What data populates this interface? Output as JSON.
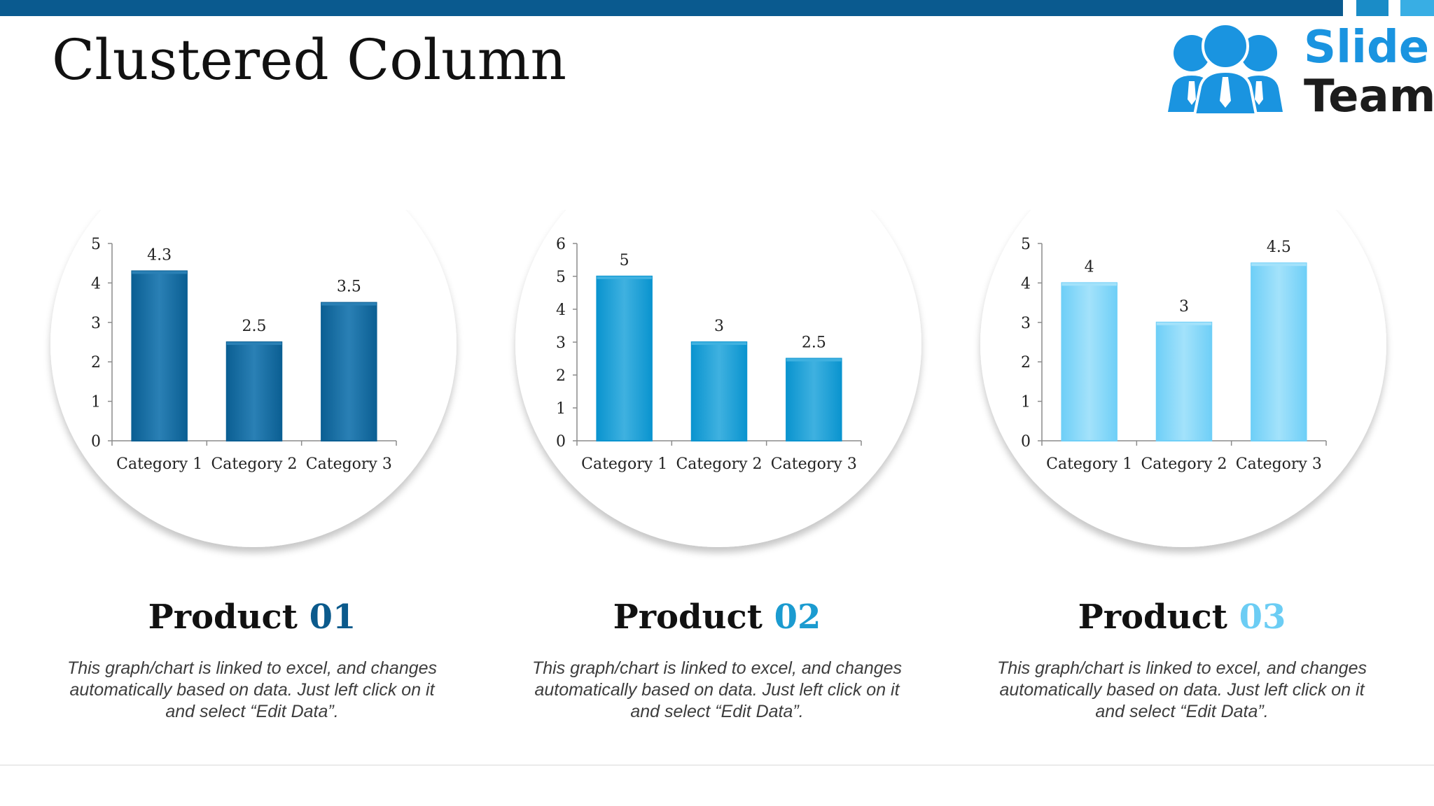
{
  "slide": {
    "title": "Clustered Column"
  },
  "logo": {
    "line1": "Slide",
    "line2": "Team"
  },
  "theme": {
    "top_bar": "#0a5a8f",
    "accent_1": "#1a8cc7",
    "accent_2": "#38aee4"
  },
  "products": [
    {
      "title_word": "Product",
      "title_number": "01",
      "number_color": "#0b5a8c",
      "bar_color": "#0b5f93",
      "bar_color_light": "#2a80b5",
      "description": "This graph/chart is linked to excel, and changes automatically based on data. Just left click on it and select “Edit Data”."
    },
    {
      "title_word": "Product",
      "title_number": "02",
      "number_color": "#1b9bd0",
      "bar_color": "#0a94cf",
      "bar_color_light": "#3fb1e0",
      "description": "This graph/chart is linked to excel, and changes automatically based on data. Just left click on it and select “Edit Data”."
    },
    {
      "title_word": "Product",
      "title_number": "03",
      "number_color": "#6ccdf4",
      "bar_color": "#6fcff7",
      "bar_color_light": "#a3e2fb",
      "description": "This graph/chart is linked to excel, and changes automatically based on data. Just left click on it and select “Edit Data”."
    }
  ],
  "chart_data": [
    {
      "type": "bar",
      "categories": [
        "Category 1",
        "Category 2",
        "Category 3"
      ],
      "values": [
        4.3,
        2.5,
        3.5
      ],
      "ylim": [
        0,
        5
      ],
      "yticks": [
        0,
        1,
        2,
        3,
        4,
        5
      ],
      "data_labels": [
        "4.3",
        "2.5",
        "3.5"
      ],
      "grid": false,
      "legend": "none"
    },
    {
      "type": "bar",
      "categories": [
        "Category 1",
        "Category 2",
        "Category 3"
      ],
      "values": [
        5,
        3,
        2.5
      ],
      "ylim": [
        0,
        6
      ],
      "yticks": [
        0,
        1,
        2,
        3,
        4,
        5,
        6
      ],
      "data_labels": [
        "5",
        "3",
        "2.5"
      ],
      "grid": false,
      "legend": "none"
    },
    {
      "type": "bar",
      "categories": [
        "Category 1",
        "Category 2",
        "Category 3"
      ],
      "values": [
        4,
        3,
        4.5
      ],
      "ylim": [
        0,
        5
      ],
      "yticks": [
        0,
        1,
        2,
        3,
        4,
        5
      ],
      "data_labels": [
        "4",
        "3",
        "4.5"
      ],
      "grid": false,
      "legend": "none"
    }
  ]
}
